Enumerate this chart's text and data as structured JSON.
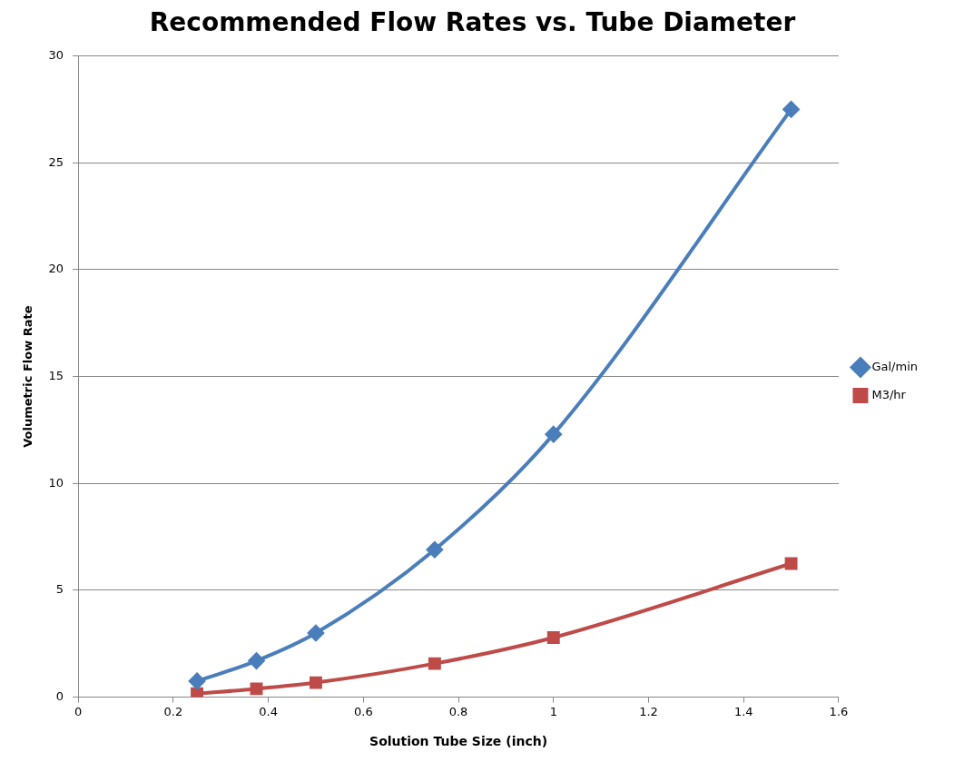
{
  "chart_data": {
    "type": "line",
    "title": "Recommended Flow Rates vs. Tube Diameter",
    "xlabel": "Solution Tube Size (inch)",
    "ylabel": "Volumetric Flow Rate",
    "x": [
      0.25,
      0.375,
      0.5,
      0.75,
      1,
      1.5
    ],
    "series": [
      {
        "name": "Gal/min",
        "color": "#4a7ebb",
        "marker": "diamond",
        "values": [
          0.75,
          1.7,
          3.0,
          6.9,
          12.3,
          27.5
        ]
      },
      {
        "name": "M3/hr",
        "color": "#be4b48",
        "marker": "square",
        "values": [
          0.17,
          0.39,
          0.68,
          1.57,
          2.79,
          6.25
        ]
      }
    ],
    "xlim": [
      0,
      1.6
    ],
    "xticks": [
      0,
      0.2,
      0.4,
      0.6,
      0.8,
      1,
      1.2,
      1.4,
      1.6
    ],
    "ylim": [
      0,
      30
    ],
    "yticks": [
      0,
      5,
      10,
      15,
      20,
      25,
      30
    ],
    "grid": "y",
    "legend": "right",
    "line_style": "solid"
  }
}
